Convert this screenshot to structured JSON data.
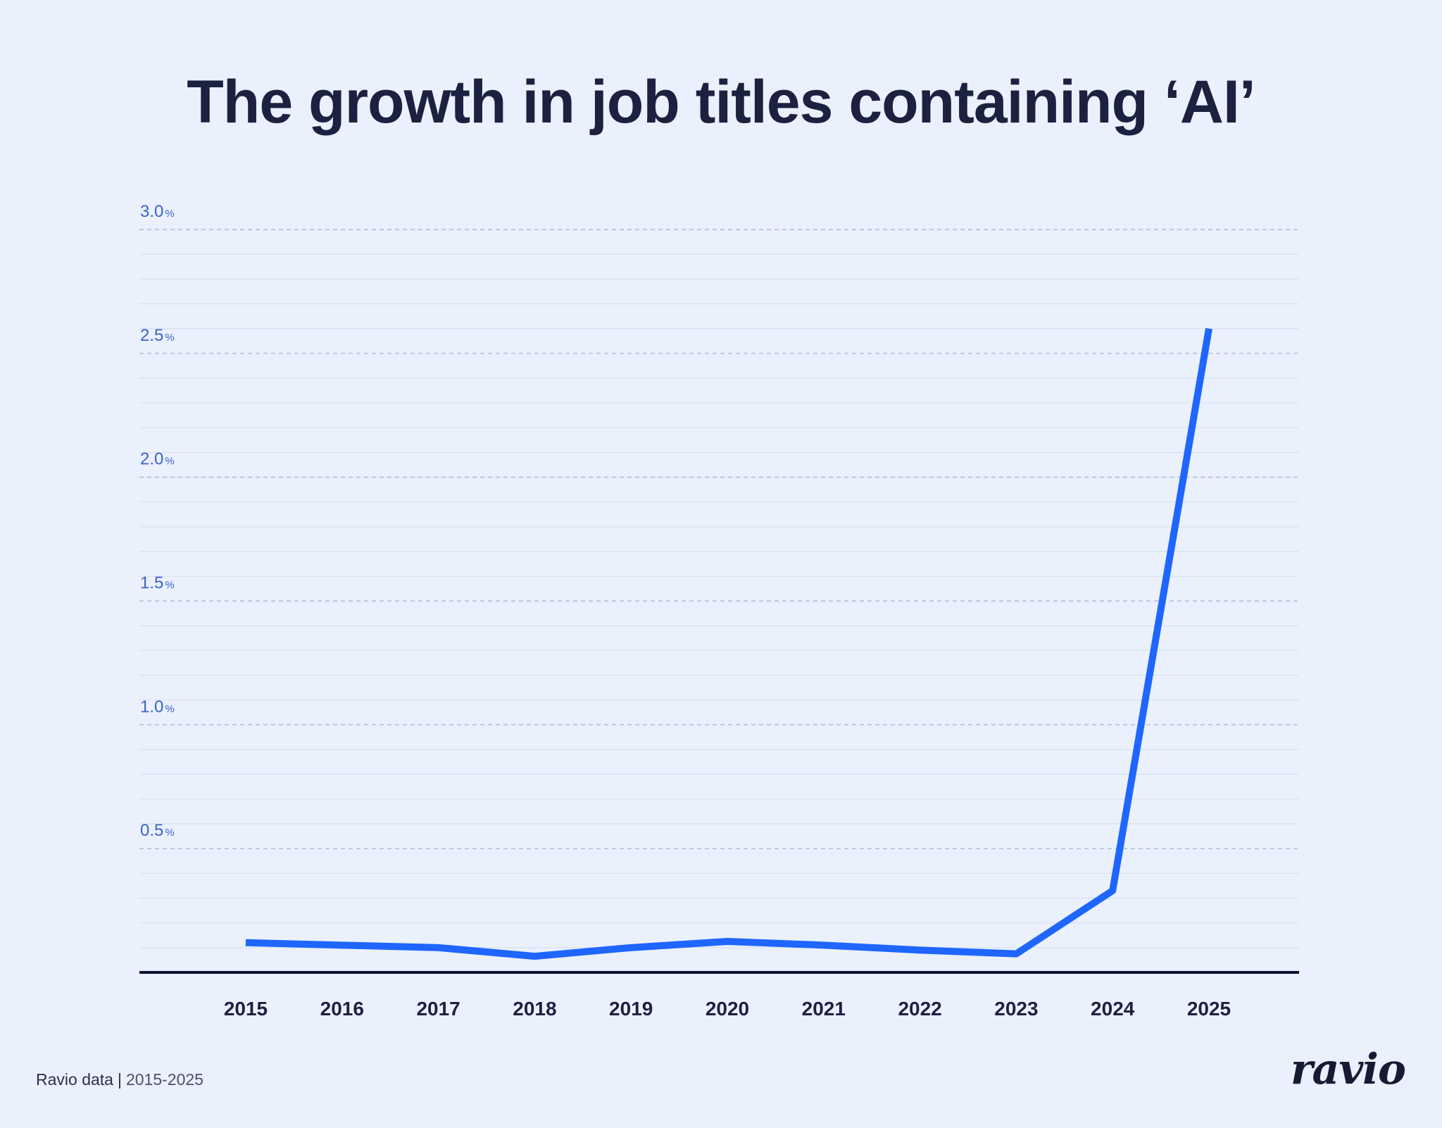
{
  "title": "The growth in job titles containing ‘AI’",
  "footer": {
    "source": "Ravio data",
    "separator": "|",
    "range": "2015-2025"
  },
  "logo_text": "ravio",
  "colors": {
    "background": "#eaf1fd",
    "line": "#1f66ff",
    "title": "#1b2240",
    "tick_label": "#3d63c9",
    "axis": "#0d1330"
  },
  "chart_data": {
    "type": "line",
    "title": "The growth in job titles containing ‘AI’",
    "xlabel": "",
    "ylabel": "",
    "categories": [
      "2015",
      "2016",
      "2017",
      "2018",
      "2019",
      "2020",
      "2021",
      "2022",
      "2023",
      "2024",
      "2025"
    ],
    "series": [
      {
        "values": [
          0.12,
          0.11,
          0.1,
          0.065,
          0.1,
          0.125,
          0.11,
          0.09,
          0.075,
          0.33,
          2.6
        ]
      }
    ],
    "yticks": [
      {
        "value": 0.5,
        "label": "0.5%"
      },
      {
        "value": 1.0,
        "label": "1.0%"
      },
      {
        "value": 1.5,
        "label": "1.5%"
      },
      {
        "value": 2.0,
        "label": "2.0%"
      },
      {
        "value": 2.5,
        "label": "2.5%"
      },
      {
        "value": 3.0,
        "label": "3.0%"
      }
    ],
    "ylim": [
      0,
      3.0
    ],
    "grid": true,
    "legend": "none"
  }
}
